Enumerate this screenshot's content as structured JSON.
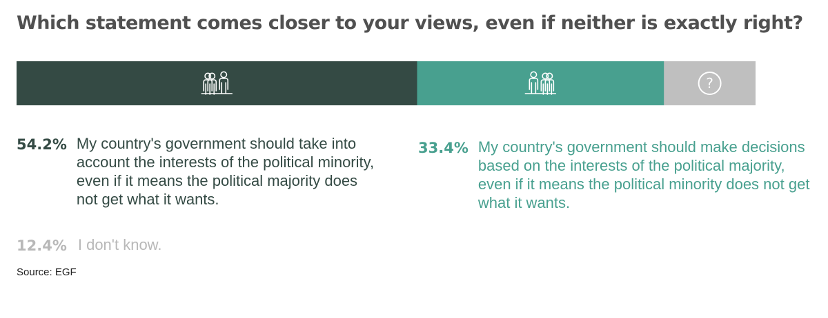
{
  "title": "Which statement comes closer to your views, even if neither is exactly right?",
  "chart_data": {
    "type": "bar",
    "orientation": "horizontal-stacked",
    "title": "Which statement comes closer to your views, even if neither is exactly right?",
    "unit": "%",
    "series": [
      {
        "name": "",
        "value": 54.2,
        "label": "54.2%",
        "text": "My country's government should take into account the interests of the political minority, even if it means the political majority does not get what it wants.",
        "color": "#344a44",
        "icon": "minority-people-icon"
      },
      {
        "name": "",
        "value": 33.4,
        "label": "33.4%",
        "text": "My country's government should make decisions based on the interests of the political majority, even if it means the political minority does not get what it wants.",
        "color": "#48a08f",
        "icon": "majority-people-icon"
      },
      {
        "name": "",
        "value": 12.4,
        "label": "12.4%",
        "text": "I don't know.",
        "color": "#bfbfbf",
        "icon": "question-circle-icon"
      }
    ]
  },
  "source": "Source: EGF"
}
